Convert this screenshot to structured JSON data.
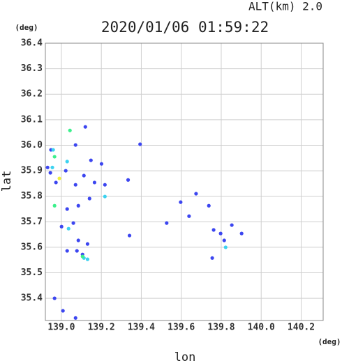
{
  "chart_data": {
    "type": "scatter",
    "title": "2020/01/06 01:59:22",
    "annotation": "ALT(km) 2.0",
    "xlabel": "lon",
    "ylabel": "lat",
    "xunit": "(deg)",
    "yunit": "(deg)",
    "xlim": [
      138.92,
      140.31
    ],
    "ylim": [
      35.313,
      36.4
    ],
    "xticks": [
      {
        "value": 139.0,
        "label": "139.0"
      },
      {
        "value": 139.2,
        "label": "139.2"
      },
      {
        "value": 139.4,
        "label": "139.4"
      },
      {
        "value": 139.6,
        "label": "139.6"
      },
      {
        "value": 139.8,
        "label": "139.8"
      },
      {
        "value": 140.0,
        "label": "140.0"
      },
      {
        "value": 140.2,
        "label": "140.2"
      }
    ],
    "yticks": [
      {
        "value": 35.4,
        "label": "35.4"
      },
      {
        "value": 35.5,
        "label": "35.5"
      },
      {
        "value": 35.6,
        "label": "35.6"
      },
      {
        "value": 35.7,
        "label": "35.7"
      },
      {
        "value": 35.8,
        "label": "35.8"
      },
      {
        "value": 35.9,
        "label": "35.9"
      },
      {
        "value": 36.0,
        "label": "36.0"
      },
      {
        "value": 36.1,
        "label": "36.1"
      },
      {
        "value": 36.2,
        "label": "36.2"
      },
      {
        "value": 36.3,
        "label": "36.3"
      },
      {
        "value": 36.4,
        "label": "36.4"
      }
    ],
    "grid": true,
    "series": [
      {
        "color": "#3c46f0",
        "x": [
          139.12,
          139.071,
          138.948,
          138.931,
          138.945,
          138.973,
          139.022,
          139.071,
          139.113,
          139.166,
          139.141,
          139.085,
          139.029,
          139.001,
          139.06,
          139.085,
          139.131,
          139.029,
          139.106,
          139.341,
          138.966,
          139.008,
          139.071,
          139.334,
          139.394,
          139.527,
          139.597,
          139.674,
          139.639,
          139.762,
          139.797,
          139.815,
          139.755,
          139.853,
          139.902,
          139.738,
          139.078,
          139.218,
          139.148,
          139.201
        ],
        "y": [
          36.072,
          36.001,
          35.982,
          35.913,
          35.892,
          35.854,
          35.9,
          35.845,
          35.881,
          35.854,
          35.791,
          35.763,
          35.75,
          35.681,
          35.695,
          35.627,
          35.613,
          35.586,
          35.572,
          35.646,
          35.4,
          35.351,
          35.323,
          35.864,
          36.004,
          35.695,
          35.777,
          35.81,
          35.722,
          35.668,
          35.654,
          35.627,
          35.558,
          35.687,
          35.654,
          35.763,
          35.586,
          35.845,
          35.941,
          35.927
        ]
      },
      {
        "color": "#3cd2f0",
        "x": [
          138.959,
          139.029,
          139.113,
          139.131,
          139.218,
          139.036,
          138.955,
          139.822
        ],
        "y": [
          35.982,
          35.936,
          35.558,
          35.553,
          35.799,
          35.673,
          35.913,
          35.6
        ]
      },
      {
        "color": "#3cf08c",
        "x": [
          139.043,
          138.966,
          138.966,
          139.106
        ],
        "y": [
          36.058,
          35.763,
          35.955,
          35.564
        ]
      },
      {
        "color": "#f0f03c",
        "x": [
          138.99
        ],
        "y": [
          35.87
        ]
      }
    ]
  }
}
